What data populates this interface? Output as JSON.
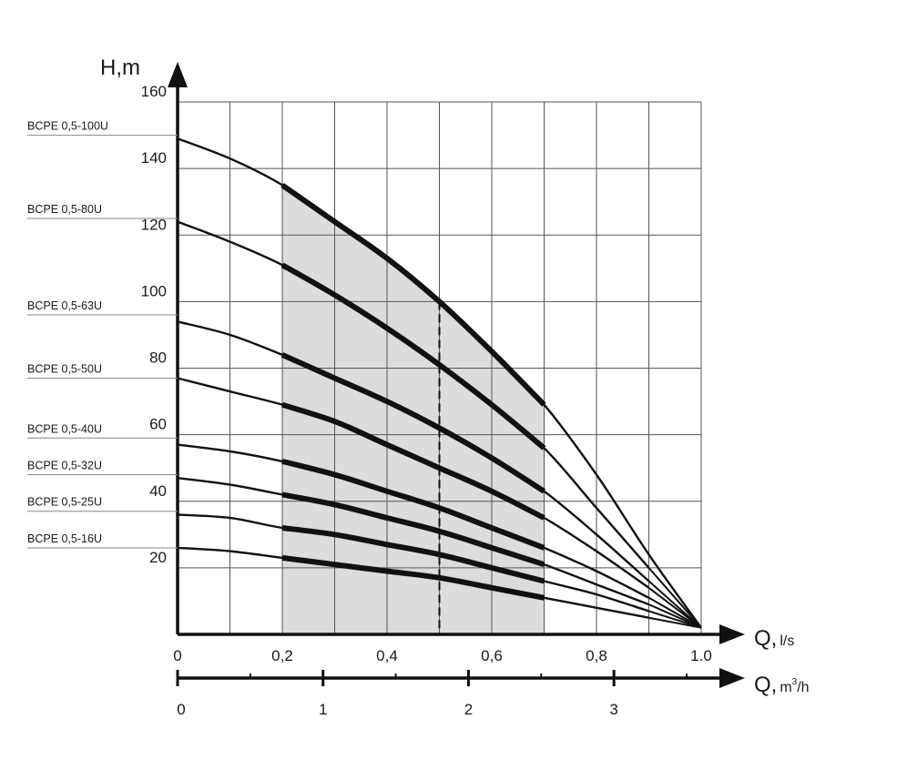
{
  "chart_data": {
    "type": "line",
    "ylabel": "H,m",
    "xlabel_main": "Q,",
    "xunit_main": "l/s",
    "xlabel_sec": "Q,",
    "xunit_sec": "m",
    "xunit_sec_sup": "3",
    "xunit_sec_tail": "/h",
    "ylim": [
      0,
      160
    ],
    "xlim": [
      0,
      1.0
    ],
    "y_ticks": [
      {
        "value": 20,
        "label": "20"
      },
      {
        "value": 40,
        "label": "40"
      },
      {
        "value": 60,
        "label": "60"
      },
      {
        "value": 80,
        "label": "80"
      },
      {
        "value": 100,
        "label": "100"
      },
      {
        "value": 120,
        "label": "120"
      },
      {
        "value": 140,
        "label": "140"
      },
      {
        "value": 160,
        "label": "160"
      }
    ],
    "x_ticks": [
      {
        "value": 0,
        "label": "0"
      },
      {
        "value": 0.2,
        "label": "0,2"
      },
      {
        "value": 0.4,
        "label": "0,4"
      },
      {
        "value": 0.6,
        "label": "0,6"
      },
      {
        "value": 0.8,
        "label": "0,8"
      },
      {
        "value": 1.0,
        "label": "1.0"
      }
    ],
    "x2_ticks": [
      {
        "value": 0,
        "label": "0"
      },
      {
        "value": 1,
        "label": "1"
      },
      {
        "value": 2,
        "label": "2"
      },
      {
        "value": 3,
        "label": "3"
      }
    ],
    "x2_max": 3.6,
    "grid": true,
    "recommended_range": {
      "q_min": 0.2,
      "q_max": 0.7
    },
    "design_point": {
      "q": 0.5
    },
    "shut_off_point": {
      "q": 1.0,
      "h": 2
    },
    "series": [
      {
        "name": "BCPE 0,5-100U",
        "label_h": 150,
        "curve": [
          [
            0,
            149
          ],
          [
            0.1,
            143
          ],
          [
            0.2,
            135
          ],
          [
            0.3,
            124
          ],
          [
            0.4,
            113
          ],
          [
            0.5,
            100
          ],
          [
            0.6,
            85
          ],
          [
            0.7,
            69
          ],
          [
            0.8,
            48
          ],
          [
            0.9,
            24
          ],
          [
            1.0,
            2
          ]
        ]
      },
      {
        "name": "BCPE 0,5-80U",
        "label_h": 125,
        "curve": [
          [
            0,
            124
          ],
          [
            0.1,
            118
          ],
          [
            0.2,
            111
          ],
          [
            0.3,
            102
          ],
          [
            0.4,
            92
          ],
          [
            0.5,
            81
          ],
          [
            0.6,
            69
          ],
          [
            0.7,
            56
          ],
          [
            0.8,
            38
          ],
          [
            0.9,
            20
          ]
        ]
      },
      {
        "name": "BCPE 0,5-63U",
        "label_h": 96,
        "curve": [
          [
            0,
            94
          ],
          [
            0.1,
            90
          ],
          [
            0.2,
            84
          ],
          [
            0.3,
            77
          ],
          [
            0.4,
            70
          ],
          [
            0.5,
            62
          ],
          [
            0.6,
            53
          ],
          [
            0.7,
            43
          ],
          [
            0.8,
            30
          ],
          [
            0.9,
            16
          ]
        ]
      },
      {
        "name": "BCPE 0,5-50U",
        "label_h": 77,
        "curve": [
          [
            0,
            77
          ],
          [
            0.1,
            73
          ],
          [
            0.2,
            69
          ],
          [
            0.3,
            64
          ],
          [
            0.4,
            57
          ],
          [
            0.5,
            50
          ],
          [
            0.6,
            43
          ],
          [
            0.7,
            35
          ],
          [
            0.8,
            25
          ],
          [
            0.9,
            14
          ]
        ]
      },
      {
        "name": "BCPE 0,5-40U",
        "label_h": 59,
        "curve": [
          [
            0,
            57
          ],
          [
            0.1,
            55
          ],
          [
            0.2,
            52
          ],
          [
            0.3,
            48
          ],
          [
            0.4,
            43
          ],
          [
            0.5,
            38
          ],
          [
            0.6,
            32
          ],
          [
            0.7,
            26
          ],
          [
            0.8,
            19
          ],
          [
            0.9,
            11
          ]
        ]
      },
      {
        "name": "BCPE 0,5-32U",
        "label_h": 48,
        "curve": [
          [
            0,
            47
          ],
          [
            0.1,
            45
          ],
          [
            0.2,
            42
          ],
          [
            0.3,
            39
          ],
          [
            0.4,
            35
          ],
          [
            0.5,
            31
          ],
          [
            0.6,
            26
          ],
          [
            0.7,
            21
          ],
          [
            0.8,
            15
          ],
          [
            0.9,
            9
          ]
        ]
      },
      {
        "name": "BCPE 0,5-25U",
        "label_h": 37,
        "curve": [
          [
            0,
            36
          ],
          [
            0.1,
            35
          ],
          [
            0.2,
            32
          ],
          [
            0.3,
            30
          ],
          [
            0.4,
            27
          ],
          [
            0.5,
            24
          ],
          [
            0.6,
            20
          ],
          [
            0.7,
            16
          ],
          [
            0.8,
            12
          ],
          [
            0.9,
            7
          ]
        ]
      },
      {
        "name": "BCPE 0,5-16U",
        "label_h": 26,
        "curve": [
          [
            0,
            26
          ],
          [
            0.1,
            25
          ],
          [
            0.2,
            23
          ],
          [
            0.3,
            21
          ],
          [
            0.4,
            19
          ],
          [
            0.5,
            17
          ],
          [
            0.6,
            14
          ],
          [
            0.7,
            11
          ],
          [
            0.8,
            8
          ],
          [
            0.9,
            5
          ]
        ]
      }
    ]
  }
}
